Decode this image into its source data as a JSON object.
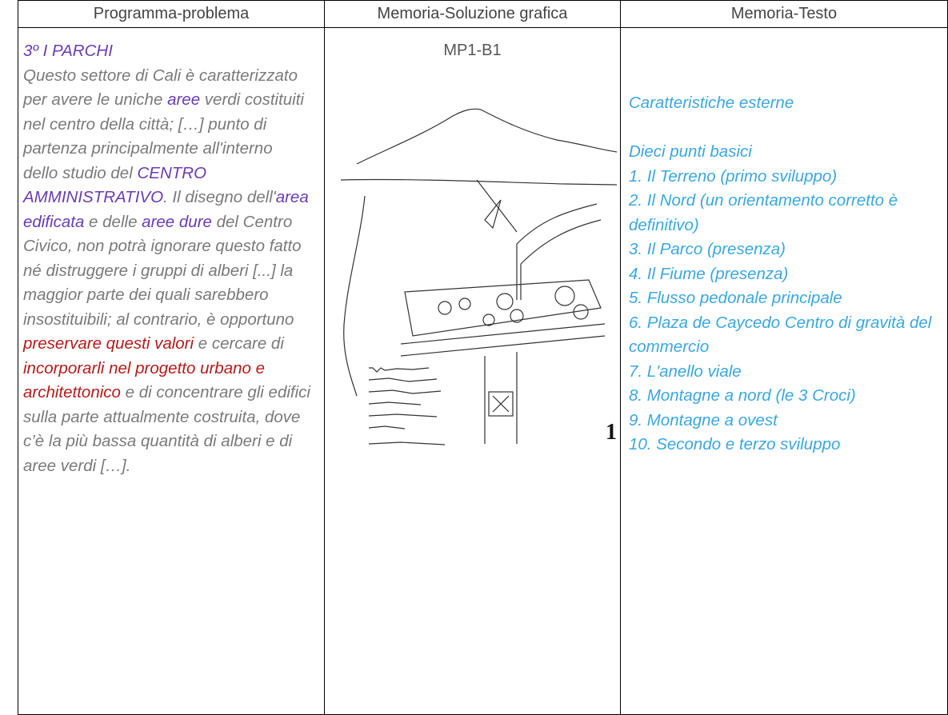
{
  "table": {
    "headers": [
      "Programma-problema",
      "Memoria-Soluzione grafica",
      "Memoria-Testo"
    ],
    "program": {
      "title": "3º I PARCHI",
      "title_color": "#6a3bb5",
      "segments": [
        {
          "text": "Questo settore di Cali è caratterizzato per avere le uniche ",
          "color": "#7a7a7a"
        },
        {
          "text": "aree",
          "color": "#6a3bb5"
        },
        {
          "text": " verdi costituiti nel centro della città; […] punto di partenza principalmente all'interno dello studio del ",
          "color": "#7a7a7a"
        },
        {
          "text": "CENTRO AMMINISTRATIVO",
          "color": "#6a3bb5"
        },
        {
          "text": ". Il disegno dell'",
          "color": "#7a7a7a"
        },
        {
          "text": "area edificata",
          "color": "#6a3bb5"
        },
        {
          "text": " e delle ",
          "color": "#7a7a7a"
        },
        {
          "text": "aree dure",
          "color": "#6a3bb5"
        },
        {
          "text": " del Centro Civico, non potrà ignorare questo fatto né distruggere i gruppi di alberi [...] la maggior parte dei quali sarebbero insostituibili; al contrario, è opportuno ",
          "color": "#7a7a7a"
        },
        {
          "text": "preservare questi valori",
          "color": "#b51a1a"
        },
        {
          "text": " e cercare di ",
          "color": "#7a7a7a"
        },
        {
          "text": "incorporarli nel progetto urbano e architettonico",
          "color": "#b51a1a"
        },
        {
          "text": " e di concentrare gli edifici sulla parte attualmente costruita, dove c’è la più bassa quantità di alberi e di aree verdi […].",
          "color": "#7a7a7a"
        }
      ]
    },
    "graphic": {
      "code": "MP1-B1",
      "figure_number": "1"
    },
    "memory": {
      "heading": "Caratteristiche esterne",
      "subheading": "Dieci punti basici",
      "items": [
        "1. Il Terreno (primo sviluppo)",
        "2. Il Nord (un orientamento corretto è definitivo)",
        "3. Il Parco (presenza)",
        "4. Il Fiume (presenza)",
        "5. Flusso pedonale principale",
        "6. Plaza de Caycedo Centro di gravità del commercio",
        "7. L'anello viale",
        "8. Montagne a nord (le 3 Croci)",
        "9. Montagne a ovest",
        "10. Secondo e terzo sviluppo"
      ]
    }
  }
}
